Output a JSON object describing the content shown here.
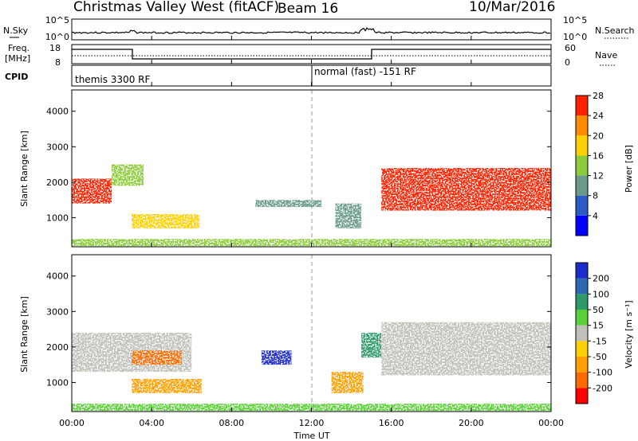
{
  "header": {
    "station": "Christmas Valley West (fitACF)",
    "beam": "Beam 16",
    "date": "10/Mar/2016"
  },
  "nsky_panel": {
    "left_label": "N.Sky",
    "right_label": "N.Search",
    "left_ticks": [
      "10^5",
      "10^0"
    ],
    "right_ticks": [
      "10^5",
      "10^0"
    ]
  },
  "freq_panel": {
    "left_label_1": "Freq.",
    "left_label_2": "[MHz]",
    "right_label": "Nave",
    "left_ticks": [
      "18",
      "8"
    ],
    "right_ticks": [
      "60",
      "0"
    ]
  },
  "cpid_panel": {
    "label": "CPID",
    "mode_1": "themis 3300 RF",
    "mode_2": "normal (fast) -151 RF"
  },
  "time_axis": {
    "label": "Time UT",
    "ticks": [
      "00:00",
      "04:00",
      "08:00",
      "12:00",
      "16:00",
      "20:00",
      "00:00"
    ]
  },
  "range_axis": {
    "label": "Slant Range [km]",
    "ticks": [
      "1000",
      "2000",
      "3000",
      "4000"
    ]
  },
  "power_colorbar": {
    "label": "Power [dB]",
    "ticks": [
      "4",
      "8",
      "12",
      "16",
      "20",
      "24",
      "28"
    ],
    "colors": [
      "#0000ff",
      "#2a5cc8",
      "#6a9a8a",
      "#8ccc3a",
      "#ffd000",
      "#ff8c00",
      "#ff2200"
    ]
  },
  "velocity_colorbar": {
    "label": "Velocity [m s⁻¹]",
    "ticks": [
      "200",
      "100",
      "50",
      "15",
      "-15",
      "-50",
      "-100",
      "-200"
    ],
    "colors": [
      "#1a2ccc",
      "#2a6ab0",
      "#2e9a6a",
      "#5cd038",
      "#c0c0b8",
      "#ffd000",
      "#ffa000",
      "#ff6a00",
      "#ff0000"
    ]
  },
  "chart_data": [
    {
      "type": "heatmap",
      "title": "Power [dB]",
      "xlabel": "Time UT",
      "ylabel": "Slant Range [km]",
      "xlim": [
        0,
        24
      ],
      "ylim": [
        180,
        4600
      ],
      "echo_regions": [
        {
          "t": [
            0.0,
            2.0
          ],
          "r": [
            1400,
            2100
          ],
          "value": 24
        },
        {
          "t": [
            2.0,
            3.6
          ],
          "r": [
            1900,
            2500
          ],
          "value": 14
        },
        {
          "t": [
            3.0,
            6.4
          ],
          "r": [
            700,
            1100
          ],
          "value": 16
        },
        {
          "t": [
            9.2,
            12.5
          ],
          "r": [
            1300,
            1500
          ],
          "value": 8
        },
        {
          "t": [
            13.2,
            14.5
          ],
          "r": [
            700,
            1400
          ],
          "value": 10
        },
        {
          "t": [
            15.5,
            24.0
          ],
          "r": [
            1200,
            2400
          ],
          "value": 26
        },
        {
          "t": [
            0.0,
            24.0
          ],
          "r": [
            200,
            400
          ],
          "value": 12
        }
      ]
    },
    {
      "type": "heatmap",
      "title": "Velocity [m s⁻¹]",
      "xlabel": "Time UT",
      "ylabel": "Slant Range [km]",
      "xlim": [
        0,
        24
      ],
      "ylim": [
        180,
        4600
      ],
      "echo_regions": [
        {
          "t": [
            0.0,
            6.0
          ],
          "r": [
            1300,
            2400
          ],
          "value": 0
        },
        {
          "t": [
            3.0,
            5.5
          ],
          "r": [
            1500,
            1900
          ],
          "value": -150
        },
        {
          "t": [
            3.0,
            6.5
          ],
          "r": [
            700,
            1100
          ],
          "value": -60
        },
        {
          "t": [
            9.5,
            11.0
          ],
          "r": [
            1500,
            1900
          ],
          "value": 180
        },
        {
          "t": [
            13.0,
            14.6
          ],
          "r": [
            700,
            1300
          ],
          "value": -100
        },
        {
          "t": [
            14.5,
            15.5
          ],
          "r": [
            1700,
            2400
          ],
          "value": 40
        },
        {
          "t": [
            15.5,
            24.0
          ],
          "r": [
            1200,
            2700
          ],
          "value": 0
        },
        {
          "t": [
            0.0,
            24.0
          ],
          "r": [
            200,
            400
          ],
          "value": 20
        }
      ]
    }
  ]
}
